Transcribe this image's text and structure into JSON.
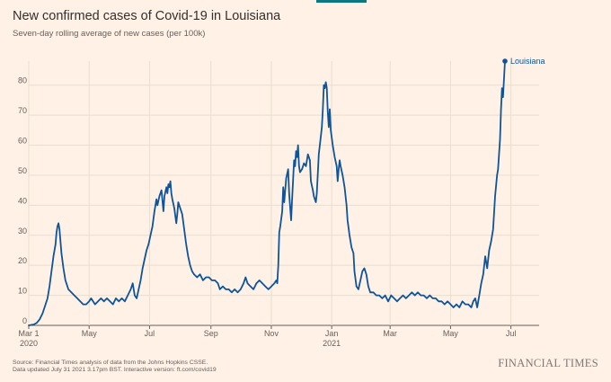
{
  "chart_data": {
    "type": "line",
    "title": "New confirmed cases of Covid-19 in Louisiana",
    "subtitle": "Seven-day rolling average of new cases (per 100k)",
    "xlabel": "",
    "ylabel": "",
    "ylim": [
      0,
      88
    ],
    "y_ticks": [
      0,
      10,
      20,
      30,
      40,
      50,
      60,
      70,
      80
    ],
    "x_range": [
      0,
      518
    ],
    "x_ticks": [
      {
        "day": 0,
        "label": "Mar 1",
        "sublabel": "2020"
      },
      {
        "day": 61,
        "label": "May",
        "sublabel": ""
      },
      {
        "day": 122,
        "label": "Jul",
        "sublabel": ""
      },
      {
        "day": 184,
        "label": "Sep",
        "sublabel": ""
      },
      {
        "day": 245,
        "label": "Nov",
        "sublabel": ""
      },
      {
        "day": 306,
        "label": "Jan",
        "sublabel": "2021"
      },
      {
        "day": 365,
        "label": "Mar",
        "sublabel": ""
      },
      {
        "day": 426,
        "label": "May",
        "sublabel": ""
      },
      {
        "day": 487,
        "label": "Jul",
        "sublabel": ""
      }
    ],
    "series": [
      {
        "name": "Louisiana",
        "color": "#0F5499",
        "points": [
          [
            0,
            0
          ],
          [
            5,
            0.3
          ],
          [
            8,
            0.8
          ],
          [
            11,
            2
          ],
          [
            14,
            4
          ],
          [
            17,
            7
          ],
          [
            19,
            9
          ],
          [
            21,
            13
          ],
          [
            23,
            18
          ],
          [
            25,
            23
          ],
          [
            27,
            27
          ],
          [
            28,
            31
          ],
          [
            29,
            33
          ],
          [
            30,
            34
          ],
          [
            31,
            32
          ],
          [
            32,
            28
          ],
          [
            33,
            24
          ],
          [
            35,
            19
          ],
          [
            37,
            15
          ],
          [
            40,
            12
          ],
          [
            43,
            11
          ],
          [
            46,
            10
          ],
          [
            49,
            9
          ],
          [
            52,
            8
          ],
          [
            55,
            7
          ],
          [
            58,
            7
          ],
          [
            61,
            8
          ],
          [
            63,
            9
          ],
          [
            65,
            8
          ],
          [
            67,
            7
          ],
          [
            70,
            8
          ],
          [
            73,
            9
          ],
          [
            76,
            8
          ],
          [
            79,
            9
          ],
          [
            82,
            8
          ],
          [
            85,
            7
          ],
          [
            88,
            9
          ],
          [
            91,
            8
          ],
          [
            94,
            9
          ],
          [
            97,
            8
          ],
          [
            100,
            10
          ],
          [
            103,
            12
          ],
          [
            105,
            14
          ],
          [
            107,
            10
          ],
          [
            109,
            9
          ],
          [
            111,
            12
          ],
          [
            113,
            15
          ],
          [
            115,
            19
          ],
          [
            117,
            22
          ],
          [
            119,
            25
          ],
          [
            121,
            27
          ],
          [
            123,
            30
          ],
          [
            125,
            33
          ],
          [
            127,
            38
          ],
          [
            129,
            42
          ],
          [
            130,
            40
          ],
          [
            132,
            43
          ],
          [
            134,
            45
          ],
          [
            136,
            38
          ],
          [
            137,
            43
          ],
          [
            139,
            46
          ],
          [
            140,
            44
          ],
          [
            141,
            47
          ],
          [
            142,
            46
          ],
          [
            143,
            48
          ],
          [
            144,
            44
          ],
          [
            145,
            42
          ],
          [
            147,
            39
          ],
          [
            149,
            34
          ],
          [
            150,
            37
          ],
          [
            151,
            41
          ],
          [
            153,
            39
          ],
          [
            155,
            37
          ],
          [
            157,
            32
          ],
          [
            159,
            27
          ],
          [
            161,
            23
          ],
          [
            163,
            20
          ],
          [
            165,
            18
          ],
          [
            167,
            17
          ],
          [
            170,
            16
          ],
          [
            173,
            17
          ],
          [
            176,
            15
          ],
          [
            179,
            16
          ],
          [
            182,
            16
          ],
          [
            185,
            15
          ],
          [
            188,
            15
          ],
          [
            191,
            14
          ],
          [
            193,
            12
          ],
          [
            196,
            13
          ],
          [
            199,
            12
          ],
          [
            202,
            12
          ],
          [
            205,
            11
          ],
          [
            208,
            12
          ],
          [
            211,
            11
          ],
          [
            214,
            12
          ],
          [
            217,
            14
          ],
          [
            219,
            16
          ],
          [
            221,
            14
          ],
          [
            224,
            13
          ],
          [
            227,
            12
          ],
          [
            230,
            14
          ],
          [
            233,
            15
          ],
          [
            236,
            14
          ],
          [
            239,
            13
          ],
          [
            242,
            12
          ],
          [
            245,
            13
          ],
          [
            248,
            14
          ],
          [
            250,
            15
          ],
          [
            251,
            14
          ],
          [
            252,
            20
          ],
          [
            253,
            31
          ],
          [
            254,
            33
          ],
          [
            256,
            38
          ],
          [
            257,
            46
          ],
          [
            258,
            41
          ],
          [
            260,
            49
          ],
          [
            262,
            52
          ],
          [
            263,
            44
          ],
          [
            265,
            35
          ],
          [
            266,
            42
          ],
          [
            268,
            55
          ],
          [
            269,
            53
          ],
          [
            270,
            58
          ],
          [
            271,
            56
          ],
          [
            272,
            60
          ],
          [
            273,
            53
          ],
          [
            274,
            51
          ],
          [
            276,
            52
          ],
          [
            278,
            54
          ],
          [
            280,
            53
          ],
          [
            282,
            57
          ],
          [
            284,
            55
          ],
          [
            285,
            48
          ],
          [
            287,
            45
          ],
          [
            288,
            43
          ],
          [
            290,
            41
          ],
          [
            291,
            44
          ],
          [
            293,
            57
          ],
          [
            295,
            63
          ],
          [
            296,
            66
          ],
          [
            297,
            72
          ],
          [
            298,
            80
          ],
          [
            299,
            79
          ],
          [
            300,
            81
          ],
          [
            301,
            79
          ],
          [
            302,
            71
          ],
          [
            303,
            66
          ],
          [
            304,
            72
          ],
          [
            305,
            65
          ],
          [
            307,
            60
          ],
          [
            309,
            56
          ],
          [
            311,
            53
          ],
          [
            312,
            48
          ],
          [
            313,
            52
          ],
          [
            314,
            55
          ],
          [
            315,
            53
          ],
          [
            317,
            50
          ],
          [
            319,
            46
          ],
          [
            321,
            40
          ],
          [
            322,
            35
          ],
          [
            324,
            30
          ],
          [
            326,
            26
          ],
          [
            328,
            24
          ],
          [
            329,
            18
          ],
          [
            331,
            13
          ],
          [
            333,
            12
          ],
          [
            335,
            15
          ],
          [
            337,
            18
          ],
          [
            339,
            19
          ],
          [
            341,
            17
          ],
          [
            343,
            13
          ],
          [
            345,
            11
          ],
          [
            348,
            11
          ],
          [
            351,
            10
          ],
          [
            354,
            10
          ],
          [
            357,
            9
          ],
          [
            360,
            10
          ],
          [
            363,
            8
          ],
          [
            366,
            10
          ],
          [
            369,
            9
          ],
          [
            372,
            8
          ],
          [
            375,
            9
          ],
          [
            378,
            10
          ],
          [
            381,
            9
          ],
          [
            384,
            10
          ],
          [
            387,
            11
          ],
          [
            390,
            10
          ],
          [
            393,
            11
          ],
          [
            396,
            10
          ],
          [
            399,
            10
          ],
          [
            402,
            9
          ],
          [
            405,
            10
          ],
          [
            408,
            9
          ],
          [
            411,
            9
          ],
          [
            414,
            8
          ],
          [
            417,
            8
          ],
          [
            420,
            7
          ],
          [
            423,
            8
          ],
          [
            426,
            7
          ],
          [
            429,
            6
          ],
          [
            432,
            7
          ],
          [
            435,
            6
          ],
          [
            438,
            8
          ],
          [
            441,
            7
          ],
          [
            444,
            7
          ],
          [
            447,
            6
          ],
          [
            449,
            8
          ],
          [
            451,
            9
          ],
          [
            453,
            6
          ],
          [
            455,
            10
          ],
          [
            457,
            14
          ],
          [
            459,
            17
          ],
          [
            461,
            23
          ],
          [
            463,
            19
          ],
          [
            465,
            25
          ],
          [
            467,
            28
          ],
          [
            469,
            32
          ],
          [
            471,
            43
          ],
          [
            473,
            50
          ],
          [
            474,
            52
          ],
          [
            476,
            62
          ],
          [
            477,
            72
          ],
          [
            478,
            79
          ],
          [
            479,
            76
          ],
          [
            480,
            82
          ],
          [
            481,
            88
          ]
        ]
      }
    ]
  },
  "footer": {
    "source": "Source: Financial Times analysis of data from the Johns Hopkins CSSE.",
    "updated": "Data updated July 31 2021 3.17pm BST. Interactive version: ft.com/covid19"
  },
  "brand": "FINANCIAL TIMES",
  "colors": {
    "background": "#FFF1E5",
    "line": "#0F5499",
    "grid": "#E9DECF",
    "accent_bar": "#0D7680"
  }
}
